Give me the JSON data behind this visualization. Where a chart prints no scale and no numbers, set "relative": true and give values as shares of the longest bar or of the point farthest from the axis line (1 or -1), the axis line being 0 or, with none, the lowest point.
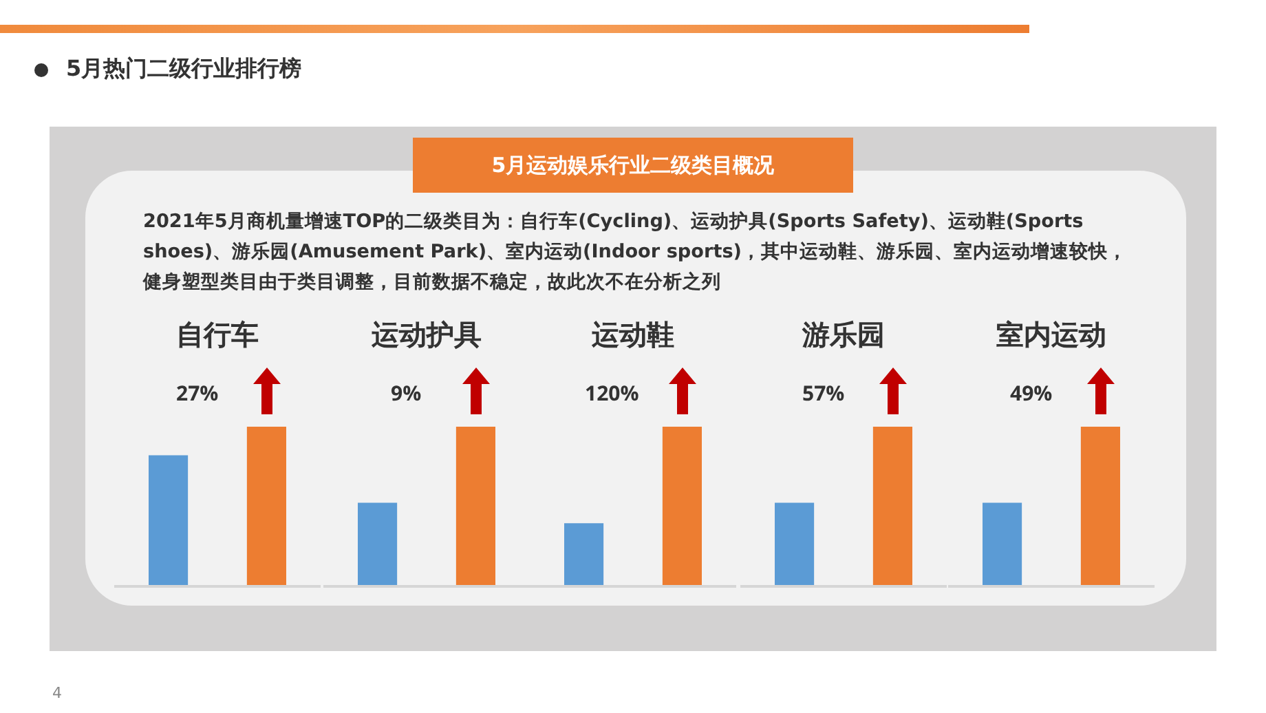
{
  "chart_data": [
    {
      "type": "other",
      "title": "5月热门二级行业排行榜",
      "subtitle": "5月运动娱乐行业二级类目概况",
      "annotations": [
        "2021年5月商机量增速TOP的二级类目为：自行车(Cycling)、运动护具(Sports Safety)、运动鞋(Sports shoes)、游乐园(Amusement Park)、室内运动(Indoor sports)，其中运动鞋、游乐园、室内运动增速较快，健身塑型类目由于类目调整，目前数据不稳定，故此次不在分析之列",
        "4"
      ]
    },
    {
      "type": "bar",
      "title": "自行车",
      "relative": true,
      "categories": [
        null,
        null
      ],
      "values": [
        0.82,
        1
      ],
      "colors": [
        "#5b9bd5",
        "#ed7d31"
      ],
      "annotations": [
        "27%"
      ]
    },
    {
      "type": "bar",
      "title": "运动护具",
      "relative": true,
      "categories": [
        null,
        null
      ],
      "values": [
        0.52,
        1
      ],
      "colors": [
        "#5b9bd5",
        "#ed7d31"
      ],
      "annotations": [
        "9%"
      ]
    },
    {
      "type": "bar",
      "title": "运动鞋",
      "relative": true,
      "categories": [
        null,
        null
      ],
      "values": [
        0.39,
        1
      ],
      "colors": [
        "#5b9bd5",
        "#ed7d31"
      ],
      "annotations": [
        "120%"
      ]
    },
    {
      "type": "bar",
      "title": "游乐园",
      "relative": true,
      "categories": [
        null,
        null
      ],
      "values": [
        0.52,
        1
      ],
      "colors": [
        "#5b9bd5",
        "#ed7d31"
      ],
      "annotations": [
        "57%"
      ]
    },
    {
      "type": "bar",
      "title": "室内运动",
      "relative": true,
      "categories": [
        null,
        null
      ],
      "values": [
        0.52,
        1
      ],
      "colors": [
        "#5b9bd5",
        "#ed7d31"
      ],
      "annotations": [
        "49%"
      ]
    }
  ]
}
